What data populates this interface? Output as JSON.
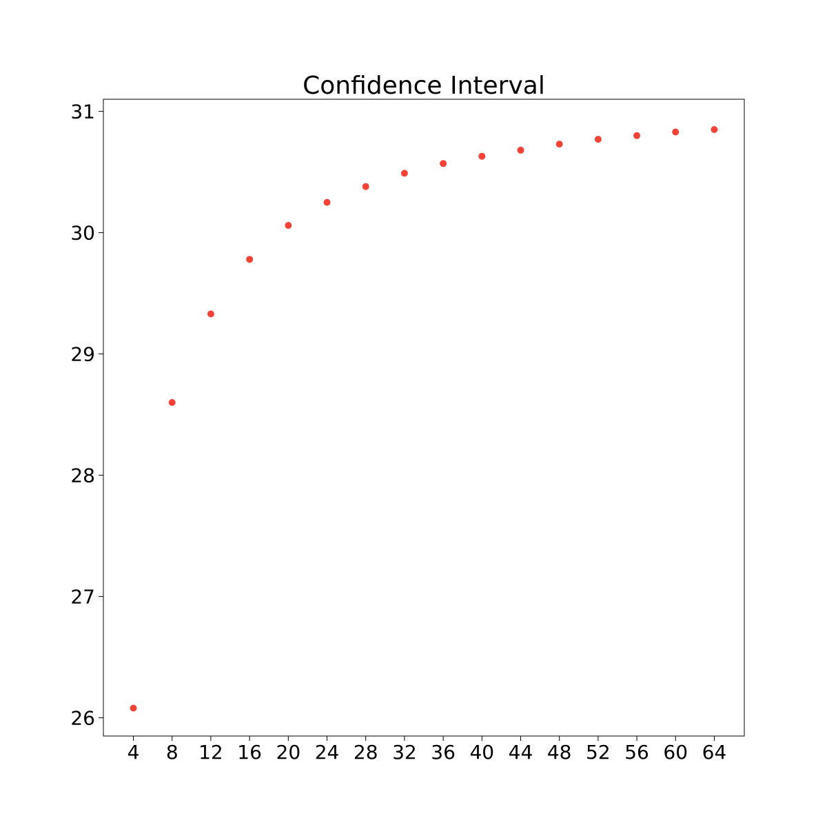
{
  "chart_data": {
    "type": "scatter",
    "title": "Confidence Interval",
    "xlabel": "",
    "ylabel": "",
    "x": [
      4,
      8,
      12,
      16,
      20,
      24,
      28,
      32,
      36,
      40,
      44,
      48,
      52,
      56,
      60,
      64
    ],
    "series": [
      {
        "values": [
          26.08,
          28.6,
          29.33,
          29.78,
          30.06,
          30.25,
          30.38,
          30.49,
          30.57,
          30.63,
          30.68,
          30.73,
          30.77,
          30.8,
          30.83,
          30.85
        ],
        "color": "#f44336"
      }
    ],
    "xticks": [
      "4",
      "8",
      "12",
      "16",
      "20",
      "24",
      "28",
      "32",
      "36",
      "40",
      "44",
      "48",
      "52",
      "56",
      "60",
      "64"
    ],
    "yticks": [
      "26",
      "27",
      "28",
      "29",
      "30",
      "31"
    ],
    "xlim": [
      0.9,
      67.1
    ],
    "ylim": [
      25.85,
      31.1
    ],
    "grid": false,
    "legend": "none"
  }
}
